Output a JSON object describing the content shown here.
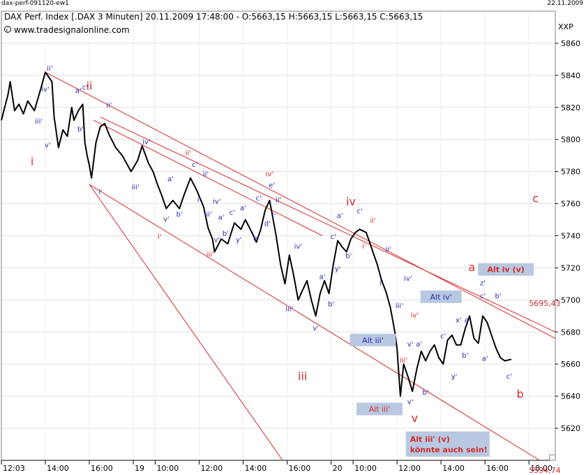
{
  "window": {
    "title": "dax-perf-091120-ew1",
    "date": "22.11.2009"
  },
  "header": {
    "info": "DAX Perf. Index [.DAX  3 Minuten] 20.11.2009 17:48:00 - O:5663,15 H:5663,15 L:5663,15 C:5663,15",
    "website": "www.tradesignalonline.com",
    "currency": "XXP"
  },
  "colors": {
    "price": "#000000",
    "channel": "#d42a2a",
    "wave_red": "#d42a2a",
    "wave_blue": "#2a2ab0",
    "box_fill": "#b8c8e0",
    "grid": "#e0e0e0"
  },
  "chart_data": {
    "type": "line",
    "title": "DAX Perf. Index",
    "ylim": [
      5600,
      5880
    ],
    "yticks": [
      5620,
      5640,
      5660,
      5680,
      5700,
      5720,
      5740,
      5760,
      5780,
      5800,
      5820,
      5840,
      5860
    ],
    "x_ticks": [
      {
        "label": "12:03",
        "t": 0
      },
      {
        "label": "14:00",
        "t": 2
      },
      {
        "label": "16:00",
        "t": 4
      },
      {
        "label": "19",
        "t": 6
      },
      {
        "label": "10:00",
        "t": 7
      },
      {
        "label": "12:00",
        "t": 9
      },
      {
        "label": "14:00",
        "t": 11
      },
      {
        "label": "16:00",
        "t": 13
      },
      {
        "label": "20",
        "t": 15
      },
      {
        "label": "10:00",
        "t": 16
      },
      {
        "label": "12:00",
        "t": 18
      },
      {
        "label": "14:00",
        "t": 20
      },
      {
        "label": "16:00",
        "t": 22
      },
      {
        "label": "18:00",
        "t": 24
      }
    ],
    "series": [
      {
        "values": [
          [
            0,
            5812
          ],
          [
            0.3,
            5828
          ],
          [
            0.4,
            5836
          ],
          [
            0.6,
            5818
          ],
          [
            0.8,
            5822
          ],
          [
            1.0,
            5816
          ],
          [
            1.2,
            5824
          ],
          [
            1.5,
            5818
          ],
          [
            1.8,
            5832
          ],
          [
            2.0,
            5842
          ],
          [
            2.3,
            5836
          ],
          [
            2.4,
            5814
          ],
          [
            2.6,
            5795
          ],
          [
            2.8,
            5806
          ],
          [
            3.0,
            5802
          ],
          [
            3.2,
            5820
          ],
          [
            3.3,
            5812
          ],
          [
            3.5,
            5818
          ],
          [
            3.7,
            5822
          ],
          [
            3.8,
            5798
          ],
          [
            3.9,
            5790
          ],
          [
            4.0,
            5784
          ],
          [
            4.1,
            5776
          ],
          [
            4.3,
            5798
          ],
          [
            4.5,
            5808
          ],
          [
            4.7,
            5810
          ],
          [
            4.9,
            5803
          ],
          [
            5.2,
            5795
          ],
          [
            5.5,
            5790
          ],
          [
            5.9,
            5780
          ],
          [
            6.2,
            5787
          ],
          [
            6.4,
            5796
          ],
          [
            6.7,
            5785
          ],
          [
            6.9,
            5780
          ],
          [
            7.1,
            5772
          ],
          [
            7.3,
            5765
          ],
          [
            7.5,
            5757
          ],
          [
            7.8,
            5762
          ],
          [
            8.1,
            5757
          ],
          [
            8.3,
            5765
          ],
          [
            8.6,
            5776
          ],
          [
            8.9,
            5768
          ],
          [
            9.2,
            5758
          ],
          [
            9.4,
            5745
          ],
          [
            9.6,
            5738
          ],
          [
            9.7,
            5730
          ],
          [
            10.0,
            5738
          ],
          [
            10.3,
            5735
          ],
          [
            10.6,
            5748
          ],
          [
            10.9,
            5744
          ],
          [
            11.1,
            5750
          ],
          [
            11.4,
            5742
          ],
          [
            11.6,
            5736
          ],
          [
            11.8,
            5744
          ],
          [
            12.0,
            5756
          ],
          [
            12.2,
            5762
          ],
          [
            12.3,
            5755
          ],
          [
            12.5,
            5740
          ],
          [
            12.7,
            5722
          ],
          [
            12.9,
            5710
          ],
          [
            13.1,
            5728
          ],
          [
            13.3,
            5715
          ],
          [
            13.5,
            5700
          ],
          [
            13.7,
            5706
          ],
          [
            13.9,
            5712
          ],
          [
            14.1,
            5700
          ],
          [
            14.3,
            5690
          ],
          [
            14.5,
            5704
          ],
          [
            14.7,
            5712
          ],
          [
            14.9,
            5704
          ],
          [
            15.1,
            5722
          ],
          [
            15.3,
            5737
          ],
          [
            15.5,
            5733
          ],
          [
            15.7,
            5730
          ],
          [
            15.9,
            5738
          ],
          [
            16.1,
            5742
          ],
          [
            16.3,
            5744
          ],
          [
            16.6,
            5742
          ],
          [
            16.9,
            5730
          ],
          [
            17.1,
            5722
          ],
          [
            17.3,
            5712
          ],
          [
            17.5,
            5705
          ],
          [
            17.7,
            5695
          ],
          [
            17.9,
            5680
          ],
          [
            18.0,
            5670
          ],
          [
            18.15,
            5640
          ],
          [
            18.3,
            5660
          ],
          [
            18.5,
            5652
          ],
          [
            18.7,
            5643
          ],
          [
            18.9,
            5657
          ],
          [
            19.1,
            5668
          ],
          [
            19.3,
            5662
          ],
          [
            19.5,
            5668
          ],
          [
            19.7,
            5672
          ],
          [
            19.9,
            5664
          ],
          [
            20.1,
            5660
          ],
          [
            20.3,
            5675
          ],
          [
            20.5,
            5678
          ],
          [
            20.7,
            5672
          ],
          [
            20.9,
            5672
          ],
          [
            21.1,
            5682
          ],
          [
            21.3,
            5690
          ],
          [
            21.5,
            5676
          ],
          [
            21.7,
            5673
          ],
          [
            21.9,
            5690
          ],
          [
            22.1,
            5686
          ],
          [
            22.3,
            5678
          ],
          [
            22.5,
            5670
          ],
          [
            22.7,
            5664
          ],
          [
            22.9,
            5662
          ],
          [
            23.2,
            5663
          ]
        ]
      }
    ],
    "channel_lines": [
      {
        "from": [
          2.0,
          5842
        ],
        "to": [
          25.2,
          5676
        ]
      },
      {
        "from": [
          4.5,
          5814
        ],
        "to": [
          25.2,
          5680
        ]
      },
      {
        "from": [
          4.2,
          5812
        ],
        "to": [
          14.6,
          5740
        ]
      },
      {
        "from": [
          4.0,
          5772
        ],
        "to": [
          25.2,
          5594
        ]
      },
      {
        "from": [
          4.0,
          5772
        ],
        "to": [
          13.2,
          5592
        ]
      }
    ],
    "annotations": {
      "price_labels": [
        {
          "text": "5695,43",
          "t": 24.0,
          "y": 5698
        },
        {
          "text": "5594,74",
          "t": 24.0,
          "y": 5594
        }
      ],
      "boxes": [
        {
          "text": "Alt iv (v)",
          "t": 22.95,
          "y": 5719,
          "color": "red"
        },
        {
          "text": "Alt iv'",
          "t": 20.0,
          "y": 5702,
          "color": "blue"
        },
        {
          "text": "Alt iii'",
          "t": 16.9,
          "y": 5675,
          "color": "blue"
        },
        {
          "text": "Alt iii'",
          "t": 17.2,
          "y": 5632,
          "color": "red"
        }
      ],
      "note_box": {
        "lines": [
          "Alt iii' (v)",
          "könnte auch sein!"
        ],
        "t": 18.4,
        "y": 5611
      },
      "waves_red": [
        {
          "text": "i",
          "t": 1.4,
          "y": 5784
        },
        {
          "text": "ii",
          "t": 4.0,
          "y": 5831
        },
        {
          "text": "iii",
          "t": 13.7,
          "y": 5650
        },
        {
          "text": "iv",
          "t": 15.9,
          "y": 5759
        },
        {
          "text": "v",
          "t": 18.8,
          "y": 5624
        },
        {
          "text": "a",
          "t": 21.4,
          "y": 5718
        },
        {
          "text": "b",
          "t": 23.6,
          "y": 5639
        },
        {
          "text": "c",
          "t": 24.3,
          "y": 5761
        }
      ],
      "waves_red_small": [
        {
          "text": "ii'",
          "t": 8.5,
          "y": 5790
        },
        {
          "text": "iv'",
          "t": 12.2,
          "y": 5777
        },
        {
          "text": "i'",
          "t": 7.2,
          "y": 5738
        },
        {
          "text": "iii'",
          "t": 9.5,
          "y": 5727
        },
        {
          "text": "ii'",
          "t": 16.9,
          "y": 5748
        },
        {
          "text": "i'",
          "t": 16.5,
          "y": 5732
        },
        {
          "text": "iv'",
          "t": 18.8,
          "y": 5689
        },
        {
          "text": "iii'",
          "t": 18.3,
          "y": 5661
        }
      ],
      "waves_blue": [
        {
          "text": "ii'",
          "t": 2.2,
          "y": 5843
        },
        {
          "text": "iv'",
          "t": 2.0,
          "y": 5830
        },
        {
          "text": "a'",
          "t": 3.5,
          "y": 5829
        },
        {
          "text": "c'",
          "t": 3.8,
          "y": 5831
        },
        {
          "text": "iii'",
          "t": 1.7,
          "y": 5810
        },
        {
          "text": "b'",
          "t": 3.6,
          "y": 5805
        },
        {
          "text": "v'",
          "t": 2.1,
          "y": 5795
        },
        {
          "text": "ii'",
          "t": 4.9,
          "y": 5820
        },
        {
          "text": "iv'",
          "t": 6.6,
          "y": 5797
        },
        {
          "text": "iii'",
          "t": 6.1,
          "y": 5769
        },
        {
          "text": "a'",
          "t": 7.7,
          "y": 5774
        },
        {
          "text": "i'",
          "t": 4.5,
          "y": 5766
        },
        {
          "text": "v'",
          "t": 7.5,
          "y": 5749
        },
        {
          "text": "b'",
          "t": 8.1,
          "y": 5752
        },
        {
          "text": "c'",
          "t": 8.8,
          "y": 5783
        },
        {
          "text": "ii'",
          "t": 9.3,
          "y": 5777
        },
        {
          "text": "i'",
          "t": 9.0,
          "y": 5761
        },
        {
          "text": "iv'",
          "t": 9.8,
          "y": 5760
        },
        {
          "text": "iii'",
          "t": 9.4,
          "y": 5752
        },
        {
          "text": "a'",
          "t": 10.0,
          "y": 5750
        },
        {
          "text": "c'",
          "t": 10.5,
          "y": 5753
        },
        {
          "text": "a'",
          "t": 11.0,
          "y": 5756
        },
        {
          "text": "b'",
          "t": 10.2,
          "y": 5740
        },
        {
          "text": "y'",
          "t": 10.8,
          "y": 5736
        },
        {
          "text": "v'",
          "t": 9.8,
          "y": 5736
        },
        {
          "text": "b'",
          "t": 11.6,
          "y": 5737
        },
        {
          "text": "d'",
          "t": 12.1,
          "y": 5746
        },
        {
          "text": "e'",
          "t": 12.3,
          "y": 5770
        },
        {
          "text": "c'",
          "t": 11.7,
          "y": 5762
        },
        {
          "text": "ii'",
          "t": 12.6,
          "y": 5761
        },
        {
          "text": "i'",
          "t": 12.4,
          "y": 5751
        },
        {
          "text": "iv'",
          "t": 13.5,
          "y": 5732
        },
        {
          "text": "a'",
          "t": 14.6,
          "y": 5713
        },
        {
          "text": "b'",
          "t": 15.0,
          "y": 5696
        },
        {
          "text": "iii'",
          "t": 13.1,
          "y": 5693
        },
        {
          "text": "v'",
          "t": 14.3,
          "y": 5681
        },
        {
          "text": "a'",
          "t": 15.4,
          "y": 5751
        },
        {
          "text": "c'",
          "t": 15.1,
          "y": 5738
        },
        {
          "text": "b'",
          "t": 15.8,
          "y": 5726
        },
        {
          "text": "y'",
          "t": 15.3,
          "y": 5718
        },
        {
          "text": "c'",
          "t": 16.3,
          "y": 5754
        },
        {
          "text": "i'",
          "t": 17.3,
          "y": 5709
        },
        {
          "text": "ii'",
          "t": 17.6,
          "y": 5730
        },
        {
          "text": "iv'",
          "t": 18.5,
          "y": 5712
        },
        {
          "text": "iii'",
          "t": 18.1,
          "y": 5695
        },
        {
          "text": "v'",
          "t": 18.6,
          "y": 5671
        },
        {
          "text": "a'",
          "t": 19.0,
          "y": 5671
        },
        {
          "text": "b'",
          "t": 19.3,
          "y": 5641
        },
        {
          "text": "v'",
          "t": 18.6,
          "y": 5635
        },
        {
          "text": "c'",
          "t": 20.1,
          "y": 5676
        },
        {
          "text": "y'",
          "t": 20.6,
          "y": 5651
        },
        {
          "text": "x'",
          "t": 20.8,
          "y": 5686
        },
        {
          "text": "a'",
          "t": 21.2,
          "y": 5686
        },
        {
          "text": "b'",
          "t": 21.1,
          "y": 5664
        },
        {
          "text": "z'",
          "t": 21.9,
          "y": 5709
        },
        {
          "text": "c'",
          "t": 21.9,
          "y": 5701
        },
        {
          "text": "b'",
          "t": 22.6,
          "y": 5701
        },
        {
          "text": "a'",
          "t": 22.0,
          "y": 5662
        },
        {
          "text": "c'",
          "t": 23.1,
          "y": 5651
        }
      ]
    }
  }
}
